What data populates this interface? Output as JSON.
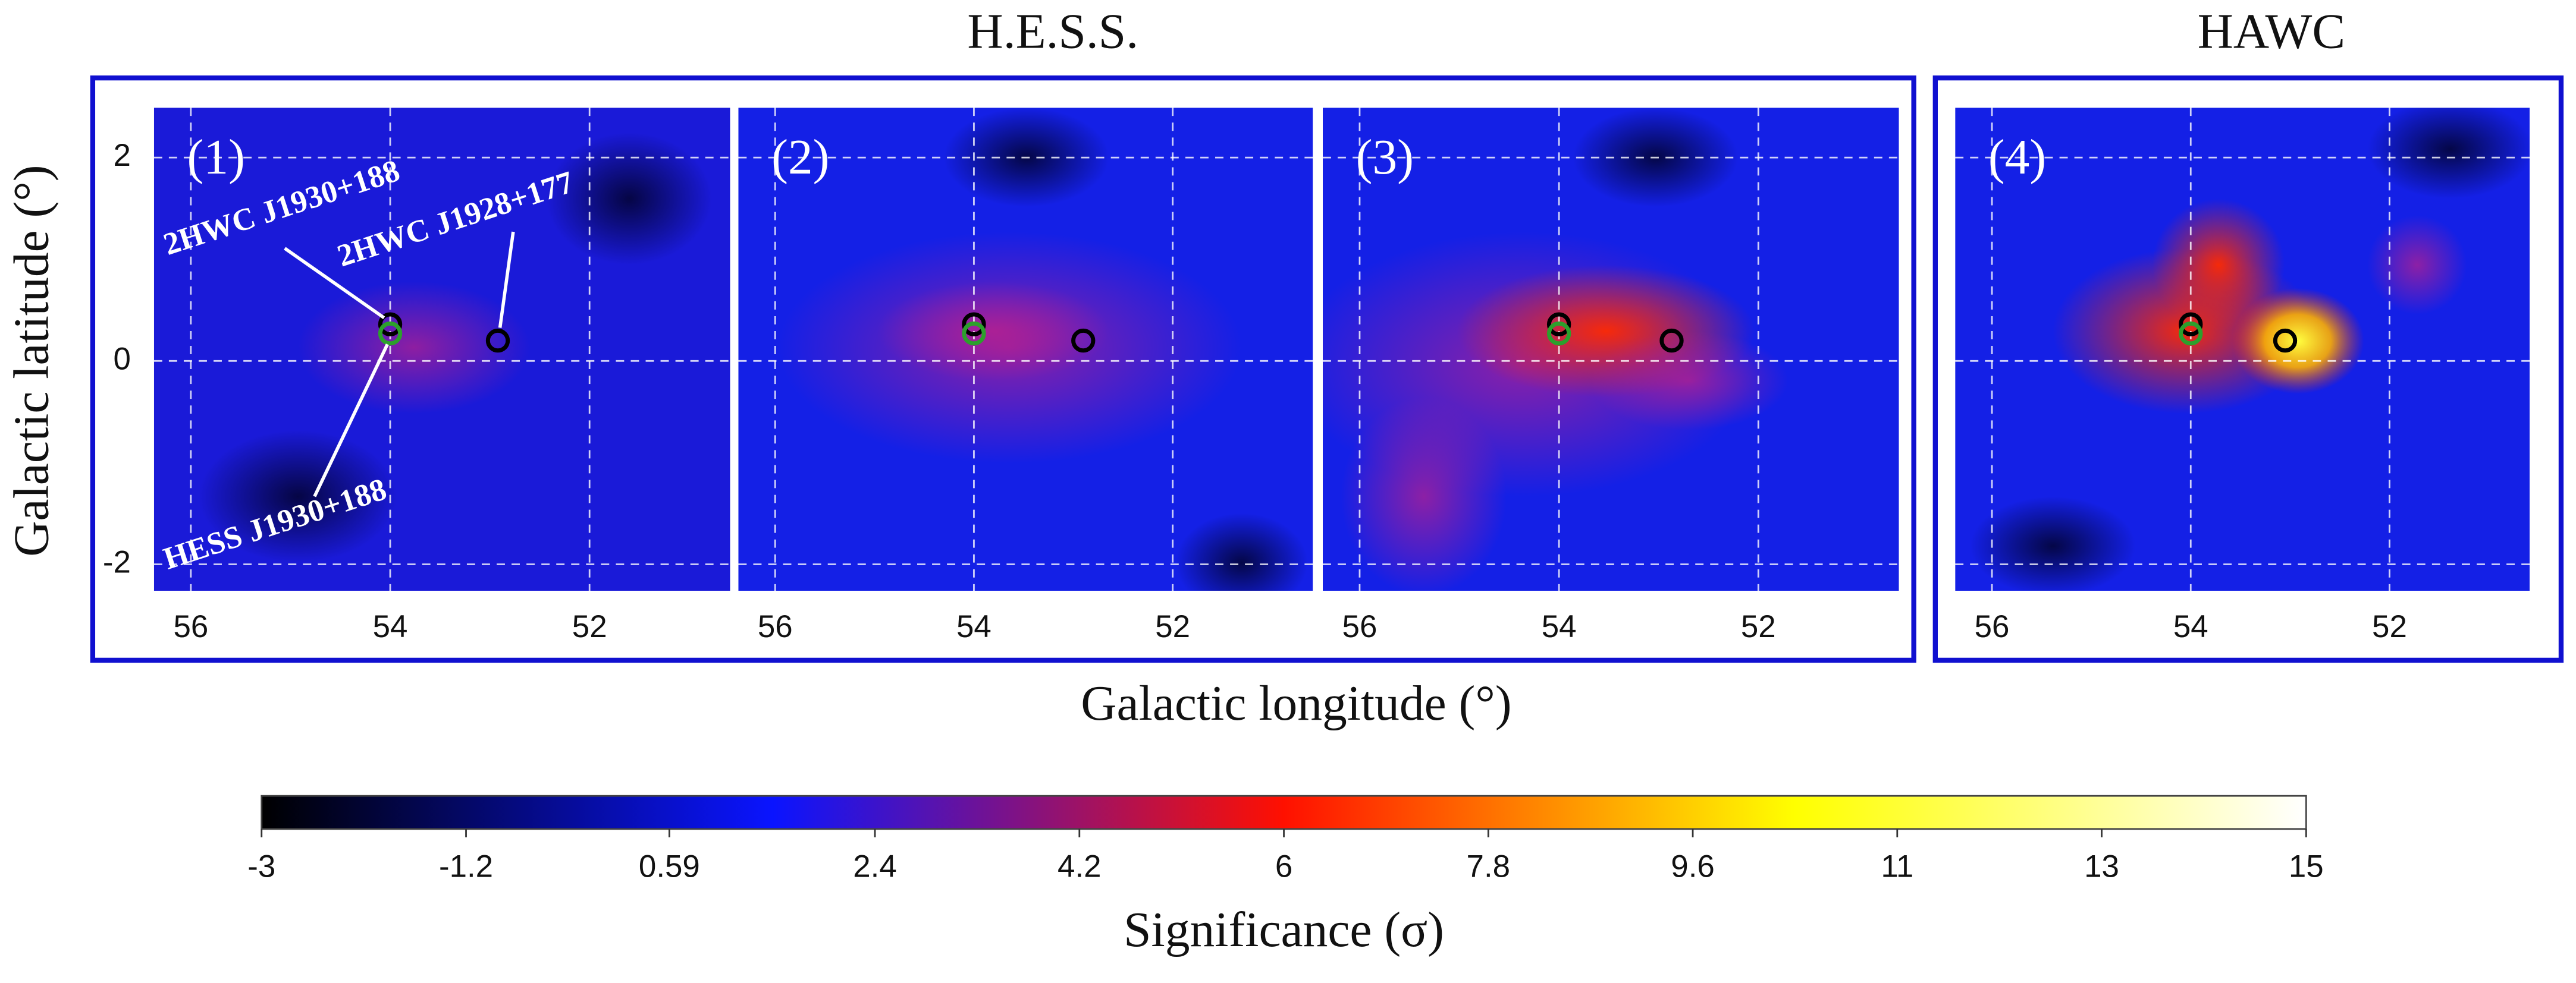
{
  "titles": [
    "H.E.S.S.",
    "HAWC"
  ],
  "xlabel": "Galactic longitude (°)",
  "ylabel": "Galactic latitude (°)",
  "annotations": [
    "2HWC J1930+188",
    "2HWC J1928+177",
    "HESS J1930+188"
  ],
  "chart_data": [
    {
      "type": "scatter",
      "label": "(1)",
      "xlim": [
        56.37,
        50.59
      ],
      "ylim": [
        -2.26,
        2.49
      ],
      "xticks": [
        56,
        54,
        52
      ],
      "yticks": [
        2,
        0,
        -2
      ],
      "grid": true,
      "series": [
        {
          "color": "#000000",
          "x": [
            54.0,
            52.92
          ],
          "values": [
            0.36,
            0.2
          ]
        },
        {
          "color": "#2ca02c",
          "x": [
            54.0
          ],
          "values": [
            0.27
          ]
        }
      ]
    },
    {
      "type": "scatter",
      "label": "(2)",
      "xlim": [
        56.37,
        50.59
      ],
      "ylim": [
        -2.26,
        2.49
      ],
      "xticks": [
        56,
        54,
        52
      ],
      "yticks": [
        2,
        0,
        -2
      ],
      "grid": true,
      "series": [
        {
          "color": "#000000",
          "x": [
            54.0,
            52.9
          ],
          "values": [
            0.36,
            0.2
          ]
        },
        {
          "color": "#2ca02c",
          "x": [
            54.0
          ],
          "values": [
            0.27
          ]
        }
      ]
    },
    {
      "type": "scatter",
      "label": "(3)",
      "xlim": [
        56.37,
        50.59
      ],
      "ylim": [
        -2.26,
        2.49
      ],
      "xticks": [
        56,
        54,
        52
      ],
      "yticks": [
        2,
        0,
        -2
      ],
      "grid": true,
      "series": [
        {
          "color": "#000000",
          "x": [
            54.0,
            52.87
          ],
          "values": [
            0.36,
            0.2
          ]
        },
        {
          "color": "#2ca02c",
          "x": [
            54.0
          ],
          "values": [
            0.27
          ]
        }
      ]
    },
    {
      "type": "scatter",
      "label": "(4)",
      "xlim": [
        56.37,
        50.59
      ],
      "ylim": [
        -2.26,
        2.49
      ],
      "xticks": [
        56,
        54,
        52
      ],
      "yticks": [
        2,
        0,
        -2
      ],
      "grid": true,
      "series": [
        {
          "color": "#000000",
          "x": [
            54.0,
            53.05
          ],
          "values": [
            0.36,
            0.2
          ]
        },
        {
          "color": "#2ca02c",
          "x": [
            54.0
          ],
          "values": [
            0.27
          ]
        }
      ]
    },
    {
      "type": "colorbar",
      "label": "Significance (σ)",
      "xlim": [
        -3,
        15
      ],
      "colors": [
        "#000000",
        "#0a14ff",
        "#ff1000",
        "#ffff00",
        "#ffffff"
      ],
      "xticks": [
        -3,
        -1.2,
        {
          "value": 0.59,
          "label": "0.59"
        },
        2.4,
        4.2,
        6,
        7.8,
        9.6,
        {
          "value": 11.4,
          "label": "11"
        },
        {
          "value": 13.2,
          "label": "13"
        },
        15
      ]
    }
  ]
}
